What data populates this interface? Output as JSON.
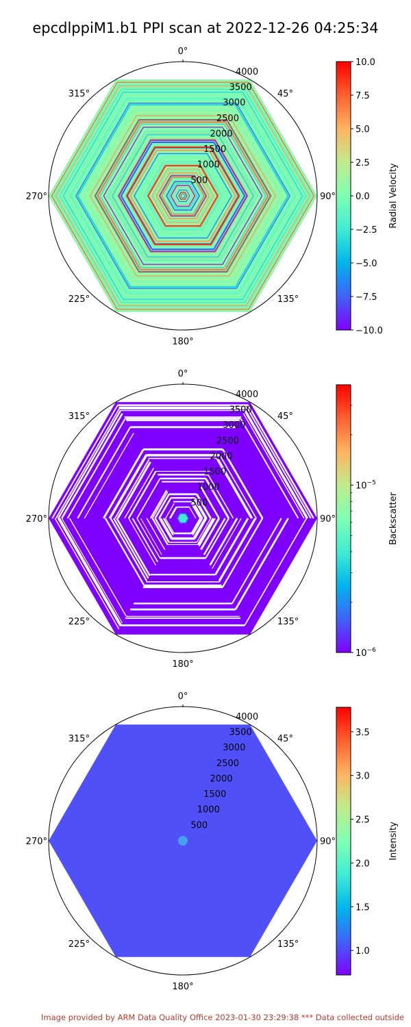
{
  "figure": {
    "title": "epcdlppiM1.b1 PPI scan at 2022-12-26 04:25:34",
    "footer": "Image provided by ARM Data Quality Office 2023-01-30 23:29:38     *** Data collected outside"
  },
  "colors": {
    "rainbow": [
      "#8000ff",
      "#4062fa",
      "#00b5eb",
      "#40ecd4",
      "#80ffb4",
      "#c0eb8d",
      "#ffb462",
      "#ff6130",
      "#ff0000"
    ],
    "backscatter_fill": "#8000ff",
    "intensity_fill": "#5050f8",
    "intensity_center": "#4aa0f0"
  },
  "chart_data": [
    {
      "type": "heatmap",
      "projection": "polar",
      "scan_shape": "hexagon",
      "field": "Radial Velocity",
      "colorbar_label": "Radial Velocity",
      "colormap": "rainbow",
      "color_range": [
        -10.0,
        10.0
      ],
      "colorbar_scale": "linear",
      "colorbar_ticks": [
        "10.0",
        "7.5",
        "5.0",
        "2.5",
        "0.0",
        "−2.5",
        "−5.0",
        "−7.5",
        "−10.0"
      ],
      "colorbar_tick_values": [
        10.0,
        7.5,
        5.0,
        2.5,
        0.0,
        -2.5,
        -5.0,
        -7.5,
        -10.0
      ],
      "angle_labels": [
        "0°",
        "45°",
        "90°",
        "135°",
        "180°",
        "225°",
        "270°",
        "315°"
      ],
      "angle_values": [
        0,
        45,
        90,
        135,
        180,
        225,
        270,
        315
      ],
      "range_labels": [
        "500",
        "1000",
        "1500",
        "2000",
        "2500",
        "3000",
        "3500",
        "4000"
      ],
      "range_values": [
        500,
        1000,
        1500,
        2000,
        2500,
        3000,
        3500,
        4000
      ],
      "r_max": 4000,
      "grid": false,
      "pattern": "noisy"
    },
    {
      "type": "heatmap",
      "projection": "polar",
      "scan_shape": "hexagon",
      "field": "Backscatter",
      "colorbar_label": "Backscatter",
      "colormap": "rainbow",
      "colorbar_scale": "log",
      "color_range_log10": [
        -6.0,
        -4.4
      ],
      "colorbar_ticks": [
        "10",
        "10"
      ],
      "colorbar_tick_exponents": [
        "−5",
        "−6"
      ],
      "colorbar_tick_log10": [
        -5,
        -6
      ],
      "angle_labels": [
        "0°",
        "45°",
        "90°",
        "135°",
        "180°",
        "225°",
        "270°",
        "315°"
      ],
      "angle_values": [
        0,
        45,
        90,
        135,
        180,
        225,
        270,
        315
      ],
      "range_labels": [
        "500",
        "1000",
        "1500",
        "2000",
        "2500",
        "3000",
        "3500",
        "4000"
      ],
      "range_values": [
        500,
        1000,
        1500,
        2000,
        2500,
        3000,
        3500,
        4000
      ],
      "r_max": 4000,
      "grid": false,
      "pattern": "gapped"
    },
    {
      "type": "heatmap",
      "projection": "polar",
      "scan_shape": "hexagon",
      "field": "Intensity",
      "colorbar_label": "Intensity",
      "colormap": "rainbow",
      "color_range": [
        0.72,
        3.78
      ],
      "colorbar_scale": "linear",
      "colorbar_ticks": [
        "3.5",
        "3.0",
        "2.5",
        "2.0",
        "1.5",
        "1.0"
      ],
      "colorbar_tick_values": [
        3.5,
        3.0,
        2.5,
        2.0,
        1.5,
        1.0
      ],
      "angle_labels": [
        "0°",
        "45°",
        "90°",
        "135°",
        "180°",
        "225°",
        "270°",
        "315°"
      ],
      "angle_values": [
        0,
        45,
        90,
        135,
        180,
        225,
        270,
        315
      ],
      "range_labels": [
        "500",
        "1000",
        "1500",
        "2000",
        "2500",
        "3000",
        "3500",
        "4000"
      ],
      "range_values": [
        500,
        1000,
        1500,
        2000,
        2500,
        3000,
        3500,
        4000
      ],
      "r_max": 4000,
      "grid": false,
      "pattern": "uniform"
    }
  ]
}
